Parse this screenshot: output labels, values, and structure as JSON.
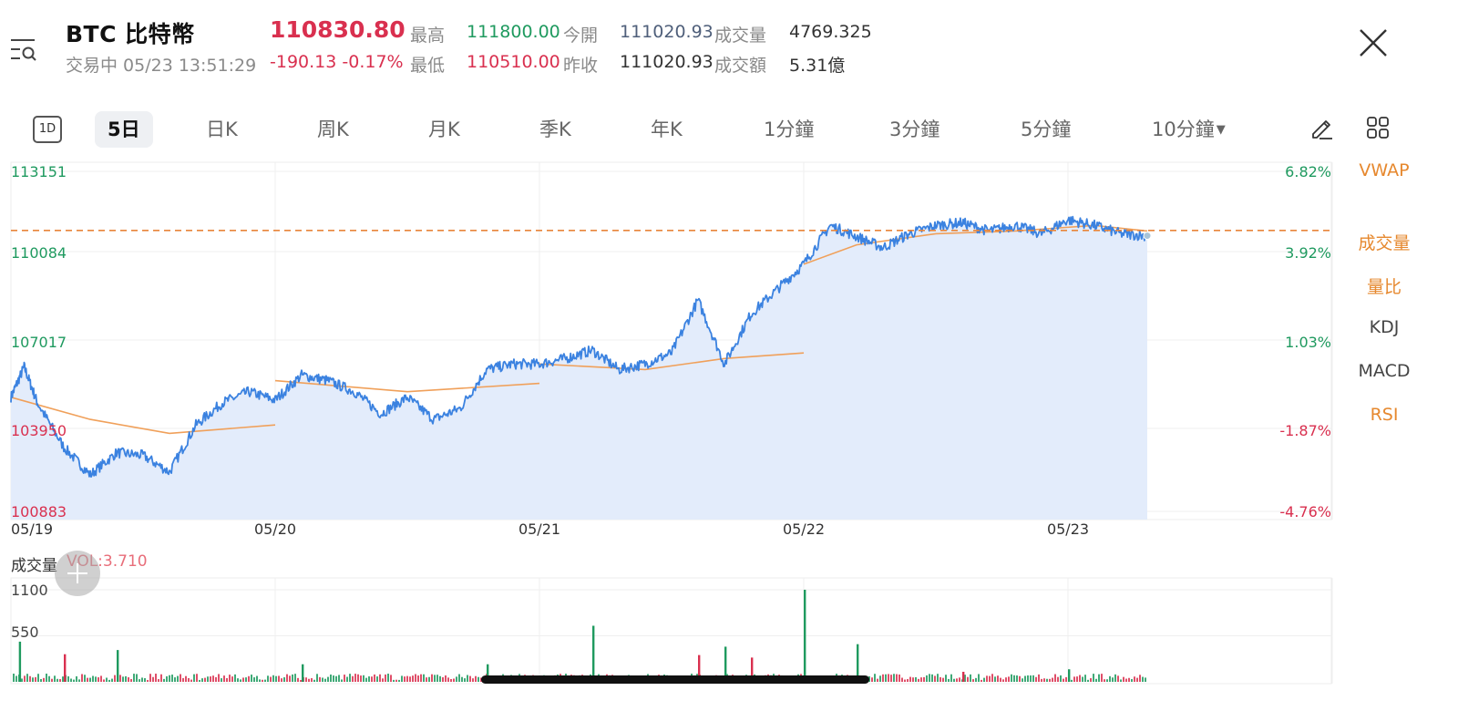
{
  "header": {
    "symbol_title": "BTC 比特幣",
    "status": "交易中 05/23 13:51:29",
    "price": "110830.80",
    "change": "-190.13 -0.17%",
    "quote_stats": [
      {
        "label": "最高",
        "value": "111800.00",
        "tone": "green"
      },
      {
        "label": "今開",
        "value": "111020.93",
        "tone": "blue-gray"
      },
      {
        "label": "成交量",
        "value": "4769.325",
        "tone": "dark"
      },
      {
        "label": "最低",
        "value": "110510.00",
        "tone": "red"
      },
      {
        "label": "昨收",
        "value": "111020.93",
        "tone": "dark"
      },
      {
        "label": "成交額",
        "value": "5.31億",
        "tone": "dark"
      }
    ]
  },
  "icons": {
    "menu": "menu-search-icon",
    "close": "close-icon",
    "draw": "pencil-icon",
    "layout": "grid-icon"
  },
  "tabs": {
    "one_day_badge": "1D",
    "items": [
      "5日",
      "日K",
      "周K",
      "月K",
      "季K",
      "年K",
      "1分鐘",
      "3分鐘",
      "5分鐘",
      "10分鐘"
    ],
    "active": "5日"
  },
  "indicators": [
    {
      "label": "VWAP",
      "tone": "orange"
    },
    {
      "label": "成交量",
      "tone": "orange"
    },
    {
      "label": "量比",
      "tone": "orange"
    },
    {
      "label": "KDJ",
      "tone": "gray"
    },
    {
      "label": "MACD",
      "tone": "gray"
    },
    {
      "label": "RSI",
      "tone": "orange"
    }
  ],
  "colors": {
    "price_line": "#3b82e0",
    "area_fill": "#e3ecfb",
    "vwap_line": "#f0a05a",
    "reference_line": "#e8853a",
    "up": "#1f9a5f",
    "down": "#d9304f"
  },
  "volume_panel": {
    "title": "成交量",
    "value_text": "VOL:3.710"
  },
  "chart_data": [
    {
      "type": "line",
      "x_labels": [
        "05/19",
        "05/20",
        "05/21",
        "05/22",
        "05/23"
      ],
      "y_ticks_left": [
        "113151",
        "110084",
        "107017",
        "103950",
        "100883"
      ],
      "y_ticks_right": [
        "6.82%",
        "3.92%",
        "1.03%",
        "-1.87%",
        "-4.76%"
      ],
      "ylim": [
        100883,
        113151
      ],
      "reference_price": 111020.93,
      "grid": true,
      "series": [
        {
          "name": "",
          "role": "price",
          "x": [
            0,
            0.05,
            0.1,
            0.2,
            0.3,
            0.4,
            0.5,
            0.6,
            0.7,
            0.8,
            0.9,
            1.0,
            1.1,
            1.2,
            1.3,
            1.4,
            1.5,
            1.6,
            1.7,
            1.8,
            1.9,
            2.0,
            2.1,
            2.2,
            2.3,
            2.4,
            2.5,
            2.6,
            2.7,
            2.8,
            2.9,
            3.0,
            3.1,
            3.2,
            3.3,
            3.4,
            3.5,
            3.6,
            3.7,
            3.8,
            3.9,
            4.0,
            4.1,
            4.2,
            4.3
          ],
          "values": [
            105000,
            106100,
            104800,
            103200,
            102200,
            103000,
            102900,
            102300,
            104000,
            104800,
            105200,
            104900,
            105800,
            105600,
            105200,
            104400,
            105000,
            104200,
            104600,
            106000,
            106200,
            106200,
            106400,
            106700,
            106000,
            106200,
            106600,
            108500,
            106200,
            108000,
            108900,
            109800,
            111200,
            110800,
            110400,
            110900,
            111200,
            111300,
            111000,
            111200,
            110900,
            111400,
            111200,
            110900,
            110830
          ]
        },
        {
          "name": "",
          "role": "vwap",
          "segments": [
            {
              "x": [
                0,
                0.3,
                0.6,
                1.0
              ],
              "values": [
                105000,
                104200,
                103700,
                104000
              ]
            },
            {
              "x": [
                1.0,
                1.5,
                2.0
              ],
              "values": [
                105600,
                105200,
                105500
              ]
            },
            {
              "x": [
                2.0,
                2.4,
                2.7,
                3.0
              ],
              "values": [
                106200,
                106000,
                106400,
                106600
              ]
            },
            {
              "x": [
                3.0,
                3.2,
                3.5,
                3.8,
                4.1,
                4.3
              ],
              "values": [
                109800,
                110500,
                110900,
                111000,
                111200,
                111000
              ]
            }
          ]
        }
      ]
    },
    {
      "type": "bar",
      "y_ticks": [
        "1100",
        "550"
      ],
      "ylim": [
        0,
        1100
      ],
      "x_labels": [
        "05/19",
        "05/20",
        "05/21",
        "05/22",
        "05/23"
      ],
      "highlights": [
        {
          "x": 0.03,
          "value": 480,
          "direction": "up"
        },
        {
          "x": 0.2,
          "value": 330,
          "direction": "down"
        },
        {
          "x": 0.4,
          "value": 380,
          "direction": "up"
        },
        {
          "x": 1.1,
          "value": 210,
          "direction": "up"
        },
        {
          "x": 1.8,
          "value": 210,
          "direction": "up"
        },
        {
          "x": 2.2,
          "value": 670,
          "direction": "up"
        },
        {
          "x": 2.6,
          "value": 320,
          "direction": "down"
        },
        {
          "x": 2.7,
          "value": 420,
          "direction": "up"
        },
        {
          "x": 2.8,
          "value": 290,
          "direction": "down"
        },
        {
          "x": 3.0,
          "value": 1100,
          "direction": "up"
        },
        {
          "x": 3.2,
          "value": 450,
          "direction": "up"
        },
        {
          "x": 3.6,
          "value": 120,
          "direction": "down"
        },
        {
          "x": 4.0,
          "value": 150,
          "direction": "up"
        }
      ]
    }
  ]
}
